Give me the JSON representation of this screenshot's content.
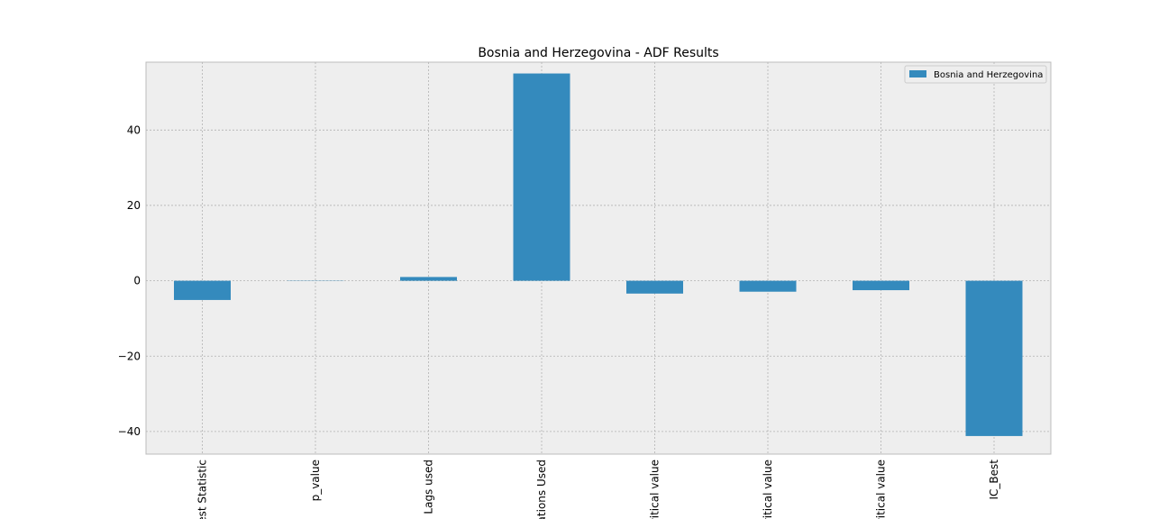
{
  "chart_data": {
    "type": "bar",
    "title": "Bosnia and Herzegovina - ADF Results",
    "xlabel": "",
    "ylabel": "",
    "categories": [
      "Test Statistic",
      "p_value",
      "Lags used",
      "Observations Used",
      "Critical value",
      "Critical value",
      "Critical value",
      "IC_Best"
    ],
    "x_tick_labels_visible": [
      "est Statistic",
      "p_value",
      "Lags used",
      "ations Used",
      "ritical value",
      "ritical value",
      "ritical value",
      "IC_Best"
    ],
    "series": [
      {
        "name": "Bosnia and Herzegovina",
        "color": "#348abd",
        "values": [
          -5.1,
          0.0,
          1,
          55,
          -3.4,
          -2.9,
          -2.5,
          -41.2
        ]
      }
    ],
    "ylim": [
      -46,
      58
    ],
    "yticks": [
      -40,
      -20,
      0,
      20,
      40
    ],
    "ytick_labels": [
      "−40",
      "−20",
      "0",
      "20",
      "40"
    ],
    "grid": true,
    "legend_position": "top-right",
    "background": "#eeeeee"
  }
}
